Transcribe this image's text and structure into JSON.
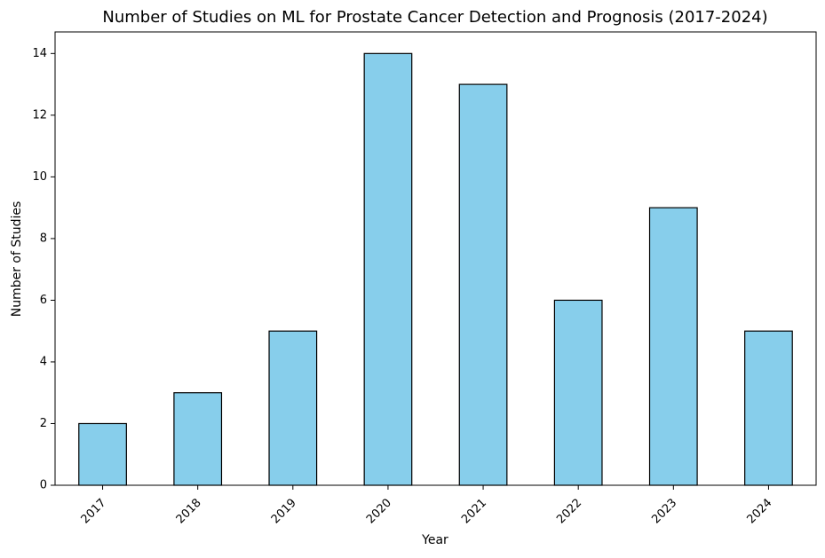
{
  "chart_data": {
    "type": "bar",
    "title": "Number of Studies on ML for Prostate Cancer Detection and Prognosis (2017-2024)",
    "xlabel": "Year",
    "ylabel": "Number of Studies",
    "categories": [
      "2017",
      "2018",
      "2019",
      "2020",
      "2021",
      "2022",
      "2023",
      "2024"
    ],
    "values": [
      2,
      3,
      5,
      14,
      13,
      6,
      9,
      5
    ],
    "ylim": [
      0,
      14.7
    ],
    "yticks": [
      "0",
      "2",
      "4",
      "6",
      "8",
      "10",
      "12",
      "14"
    ],
    "grid": false,
    "legend": "none",
    "bar_color": "#87ceeb",
    "edge_color": "#000000",
    "xtick_rotation_deg": 45
  }
}
